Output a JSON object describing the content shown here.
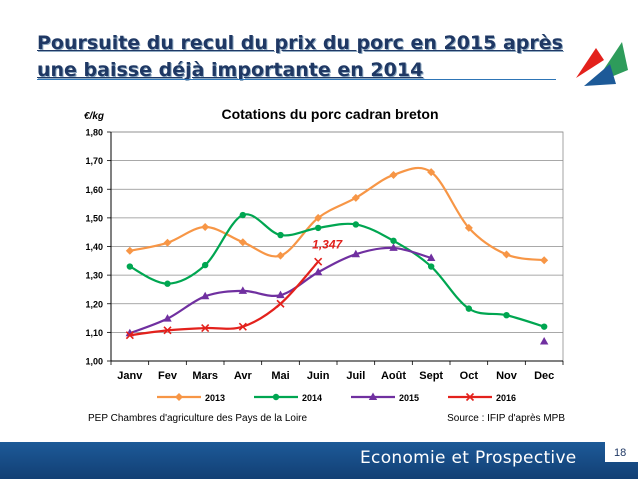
{
  "slide": {
    "title": "Poursuite du recul du prix du porc en 2015 après une baisse déjà importante en 2014",
    "footer_label": "Economie et Prospective",
    "page_number": "18",
    "source_left": "PEP Chambres d'agriculture des Pays de la Loire",
    "source_right": "Source : IFIP d'après MPB"
  },
  "colors": {
    "title": "#1f3864",
    "footer": "#1d5a98",
    "s2013": "#f79646",
    "s2014": "#00a651",
    "s2015": "#7030a0",
    "s2016": "#e3211c"
  },
  "chart_data": {
    "type": "line",
    "title": "Cotations du porc cadran breton",
    "ylabel": "€/kg",
    "xlabel": "",
    "ylim": [
      1.0,
      1.8
    ],
    "yticks": [
      "1,00",
      "1,10",
      "1,20",
      "1,30",
      "1,40",
      "1,50",
      "1,60",
      "1,70",
      "1,80"
    ],
    "categories": [
      "Janv",
      "Fev",
      "Mars",
      "Avr",
      "Mai",
      "Juin",
      "Juil",
      "Août",
      "Sept",
      "Oct",
      "Nov",
      "Dec"
    ],
    "grid": true,
    "legend_position": "bottom",
    "annotation": {
      "text": "1,347",
      "series": "2016",
      "index": 5
    },
    "series": [
      {
        "name": "2013",
        "color": "#f79646",
        "marker": "diamond",
        "values": [
          1.385,
          1.413,
          1.468,
          1.415,
          1.368,
          1.5,
          1.57,
          1.65,
          1.66,
          1.465,
          1.372,
          1.352
        ]
      },
      {
        "name": "2014",
        "color": "#00a651",
        "marker": "circle",
        "values": [
          1.33,
          1.27,
          1.335,
          1.51,
          1.44,
          1.465,
          1.477,
          1.42,
          1.33,
          1.183,
          1.16,
          1.12
        ]
      },
      {
        "name": "2015",
        "color": "#7030a0",
        "marker": "triangle",
        "values": [
          1.097,
          1.148,
          1.226,
          1.245,
          1.23,
          1.31,
          1.373,
          1.395,
          1.36,
          null,
          null,
          1.068
        ]
      },
      {
        "name": "2016",
        "color": "#e3211c",
        "marker": "x",
        "values": [
          1.09,
          1.107,
          1.115,
          1.12,
          1.2,
          1.347,
          null,
          null,
          null,
          null,
          null,
          null
        ]
      }
    ]
  }
}
